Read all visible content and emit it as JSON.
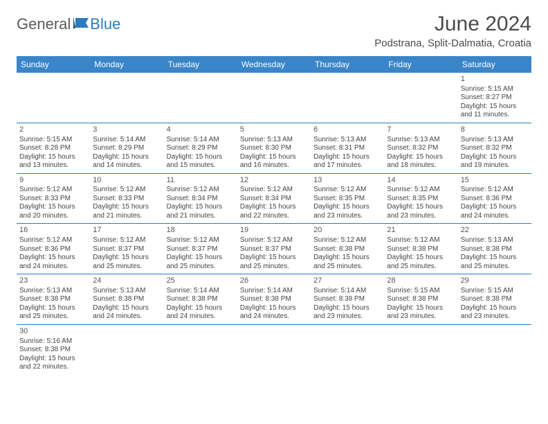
{
  "logo": {
    "text_general": "General",
    "text_blue": "Blue"
  },
  "title": {
    "month": "June 2024",
    "location": "Podstrana, Split-Dalmatia, Croatia"
  },
  "colors": {
    "header_bg": "#3a85c9",
    "header_text": "#ffffff",
    "cell_border": "#2b7bbf",
    "body_text": "#444444",
    "logo_gray": "#5a5a5a",
    "logo_blue": "#2b7bbf",
    "background": "#ffffff"
  },
  "weekdays": [
    "Sunday",
    "Monday",
    "Tuesday",
    "Wednesday",
    "Thursday",
    "Friday",
    "Saturday"
  ],
  "cells": [
    null,
    null,
    null,
    null,
    null,
    null,
    {
      "d": "1",
      "sr": "Sunrise: 5:15 AM",
      "ss": "Sunset: 8:27 PM",
      "dl1": "Daylight: 15 hours",
      "dl2": "and 11 minutes."
    },
    {
      "d": "2",
      "sr": "Sunrise: 5:15 AM",
      "ss": "Sunset: 8:28 PM",
      "dl1": "Daylight: 15 hours",
      "dl2": "and 13 minutes."
    },
    {
      "d": "3",
      "sr": "Sunrise: 5:14 AM",
      "ss": "Sunset: 8:29 PM",
      "dl1": "Daylight: 15 hours",
      "dl2": "and 14 minutes."
    },
    {
      "d": "4",
      "sr": "Sunrise: 5:14 AM",
      "ss": "Sunset: 8:29 PM",
      "dl1": "Daylight: 15 hours",
      "dl2": "and 15 minutes."
    },
    {
      "d": "5",
      "sr": "Sunrise: 5:13 AM",
      "ss": "Sunset: 8:30 PM",
      "dl1": "Daylight: 15 hours",
      "dl2": "and 16 minutes."
    },
    {
      "d": "6",
      "sr": "Sunrise: 5:13 AM",
      "ss": "Sunset: 8:31 PM",
      "dl1": "Daylight: 15 hours",
      "dl2": "and 17 minutes."
    },
    {
      "d": "7",
      "sr": "Sunrise: 5:13 AM",
      "ss": "Sunset: 8:32 PM",
      "dl1": "Daylight: 15 hours",
      "dl2": "and 18 minutes."
    },
    {
      "d": "8",
      "sr": "Sunrise: 5:13 AM",
      "ss": "Sunset: 8:32 PM",
      "dl1": "Daylight: 15 hours",
      "dl2": "and 19 minutes."
    },
    {
      "d": "9",
      "sr": "Sunrise: 5:12 AM",
      "ss": "Sunset: 8:33 PM",
      "dl1": "Daylight: 15 hours",
      "dl2": "and 20 minutes."
    },
    {
      "d": "10",
      "sr": "Sunrise: 5:12 AM",
      "ss": "Sunset: 8:33 PM",
      "dl1": "Daylight: 15 hours",
      "dl2": "and 21 minutes."
    },
    {
      "d": "11",
      "sr": "Sunrise: 5:12 AM",
      "ss": "Sunset: 8:34 PM",
      "dl1": "Daylight: 15 hours",
      "dl2": "and 21 minutes."
    },
    {
      "d": "12",
      "sr": "Sunrise: 5:12 AM",
      "ss": "Sunset: 8:34 PM",
      "dl1": "Daylight: 15 hours",
      "dl2": "and 22 minutes."
    },
    {
      "d": "13",
      "sr": "Sunrise: 5:12 AM",
      "ss": "Sunset: 8:35 PM",
      "dl1": "Daylight: 15 hours",
      "dl2": "and 23 minutes."
    },
    {
      "d": "14",
      "sr": "Sunrise: 5:12 AM",
      "ss": "Sunset: 8:35 PM",
      "dl1": "Daylight: 15 hours",
      "dl2": "and 23 minutes."
    },
    {
      "d": "15",
      "sr": "Sunrise: 5:12 AM",
      "ss": "Sunset: 8:36 PM",
      "dl1": "Daylight: 15 hours",
      "dl2": "and 24 minutes."
    },
    {
      "d": "16",
      "sr": "Sunrise: 5:12 AM",
      "ss": "Sunset: 8:36 PM",
      "dl1": "Daylight: 15 hours",
      "dl2": "and 24 minutes."
    },
    {
      "d": "17",
      "sr": "Sunrise: 5:12 AM",
      "ss": "Sunset: 8:37 PM",
      "dl1": "Daylight: 15 hours",
      "dl2": "and 25 minutes."
    },
    {
      "d": "18",
      "sr": "Sunrise: 5:12 AM",
      "ss": "Sunset: 8:37 PM",
      "dl1": "Daylight: 15 hours",
      "dl2": "and 25 minutes."
    },
    {
      "d": "19",
      "sr": "Sunrise: 5:12 AM",
      "ss": "Sunset: 8:37 PM",
      "dl1": "Daylight: 15 hours",
      "dl2": "and 25 minutes."
    },
    {
      "d": "20",
      "sr": "Sunrise: 5:12 AM",
      "ss": "Sunset: 8:38 PM",
      "dl1": "Daylight: 15 hours",
      "dl2": "and 25 minutes."
    },
    {
      "d": "21",
      "sr": "Sunrise: 5:12 AM",
      "ss": "Sunset: 8:38 PM",
      "dl1": "Daylight: 15 hours",
      "dl2": "and 25 minutes."
    },
    {
      "d": "22",
      "sr": "Sunrise: 5:13 AM",
      "ss": "Sunset: 8:38 PM",
      "dl1": "Daylight: 15 hours",
      "dl2": "and 25 minutes."
    },
    {
      "d": "23",
      "sr": "Sunrise: 5:13 AM",
      "ss": "Sunset: 8:38 PM",
      "dl1": "Daylight: 15 hours",
      "dl2": "and 25 minutes."
    },
    {
      "d": "24",
      "sr": "Sunrise: 5:13 AM",
      "ss": "Sunset: 8:38 PM",
      "dl1": "Daylight: 15 hours",
      "dl2": "and 24 minutes."
    },
    {
      "d": "25",
      "sr": "Sunrise: 5:14 AM",
      "ss": "Sunset: 8:38 PM",
      "dl1": "Daylight: 15 hours",
      "dl2": "and 24 minutes."
    },
    {
      "d": "26",
      "sr": "Sunrise: 5:14 AM",
      "ss": "Sunset: 8:38 PM",
      "dl1": "Daylight: 15 hours",
      "dl2": "and 24 minutes."
    },
    {
      "d": "27",
      "sr": "Sunrise: 5:14 AM",
      "ss": "Sunset: 8:38 PM",
      "dl1": "Daylight: 15 hours",
      "dl2": "and 23 minutes."
    },
    {
      "d": "28",
      "sr": "Sunrise: 5:15 AM",
      "ss": "Sunset: 8:38 PM",
      "dl1": "Daylight: 15 hours",
      "dl2": "and 23 minutes."
    },
    {
      "d": "29",
      "sr": "Sunrise: 5:15 AM",
      "ss": "Sunset: 8:38 PM",
      "dl1": "Daylight: 15 hours",
      "dl2": "and 23 minutes."
    },
    {
      "d": "30",
      "sr": "Sunrise: 5:16 AM",
      "ss": "Sunset: 8:38 PM",
      "dl1": "Daylight: 15 hours",
      "dl2": "and 22 minutes."
    },
    null,
    null,
    null,
    null,
    null,
    null
  ]
}
